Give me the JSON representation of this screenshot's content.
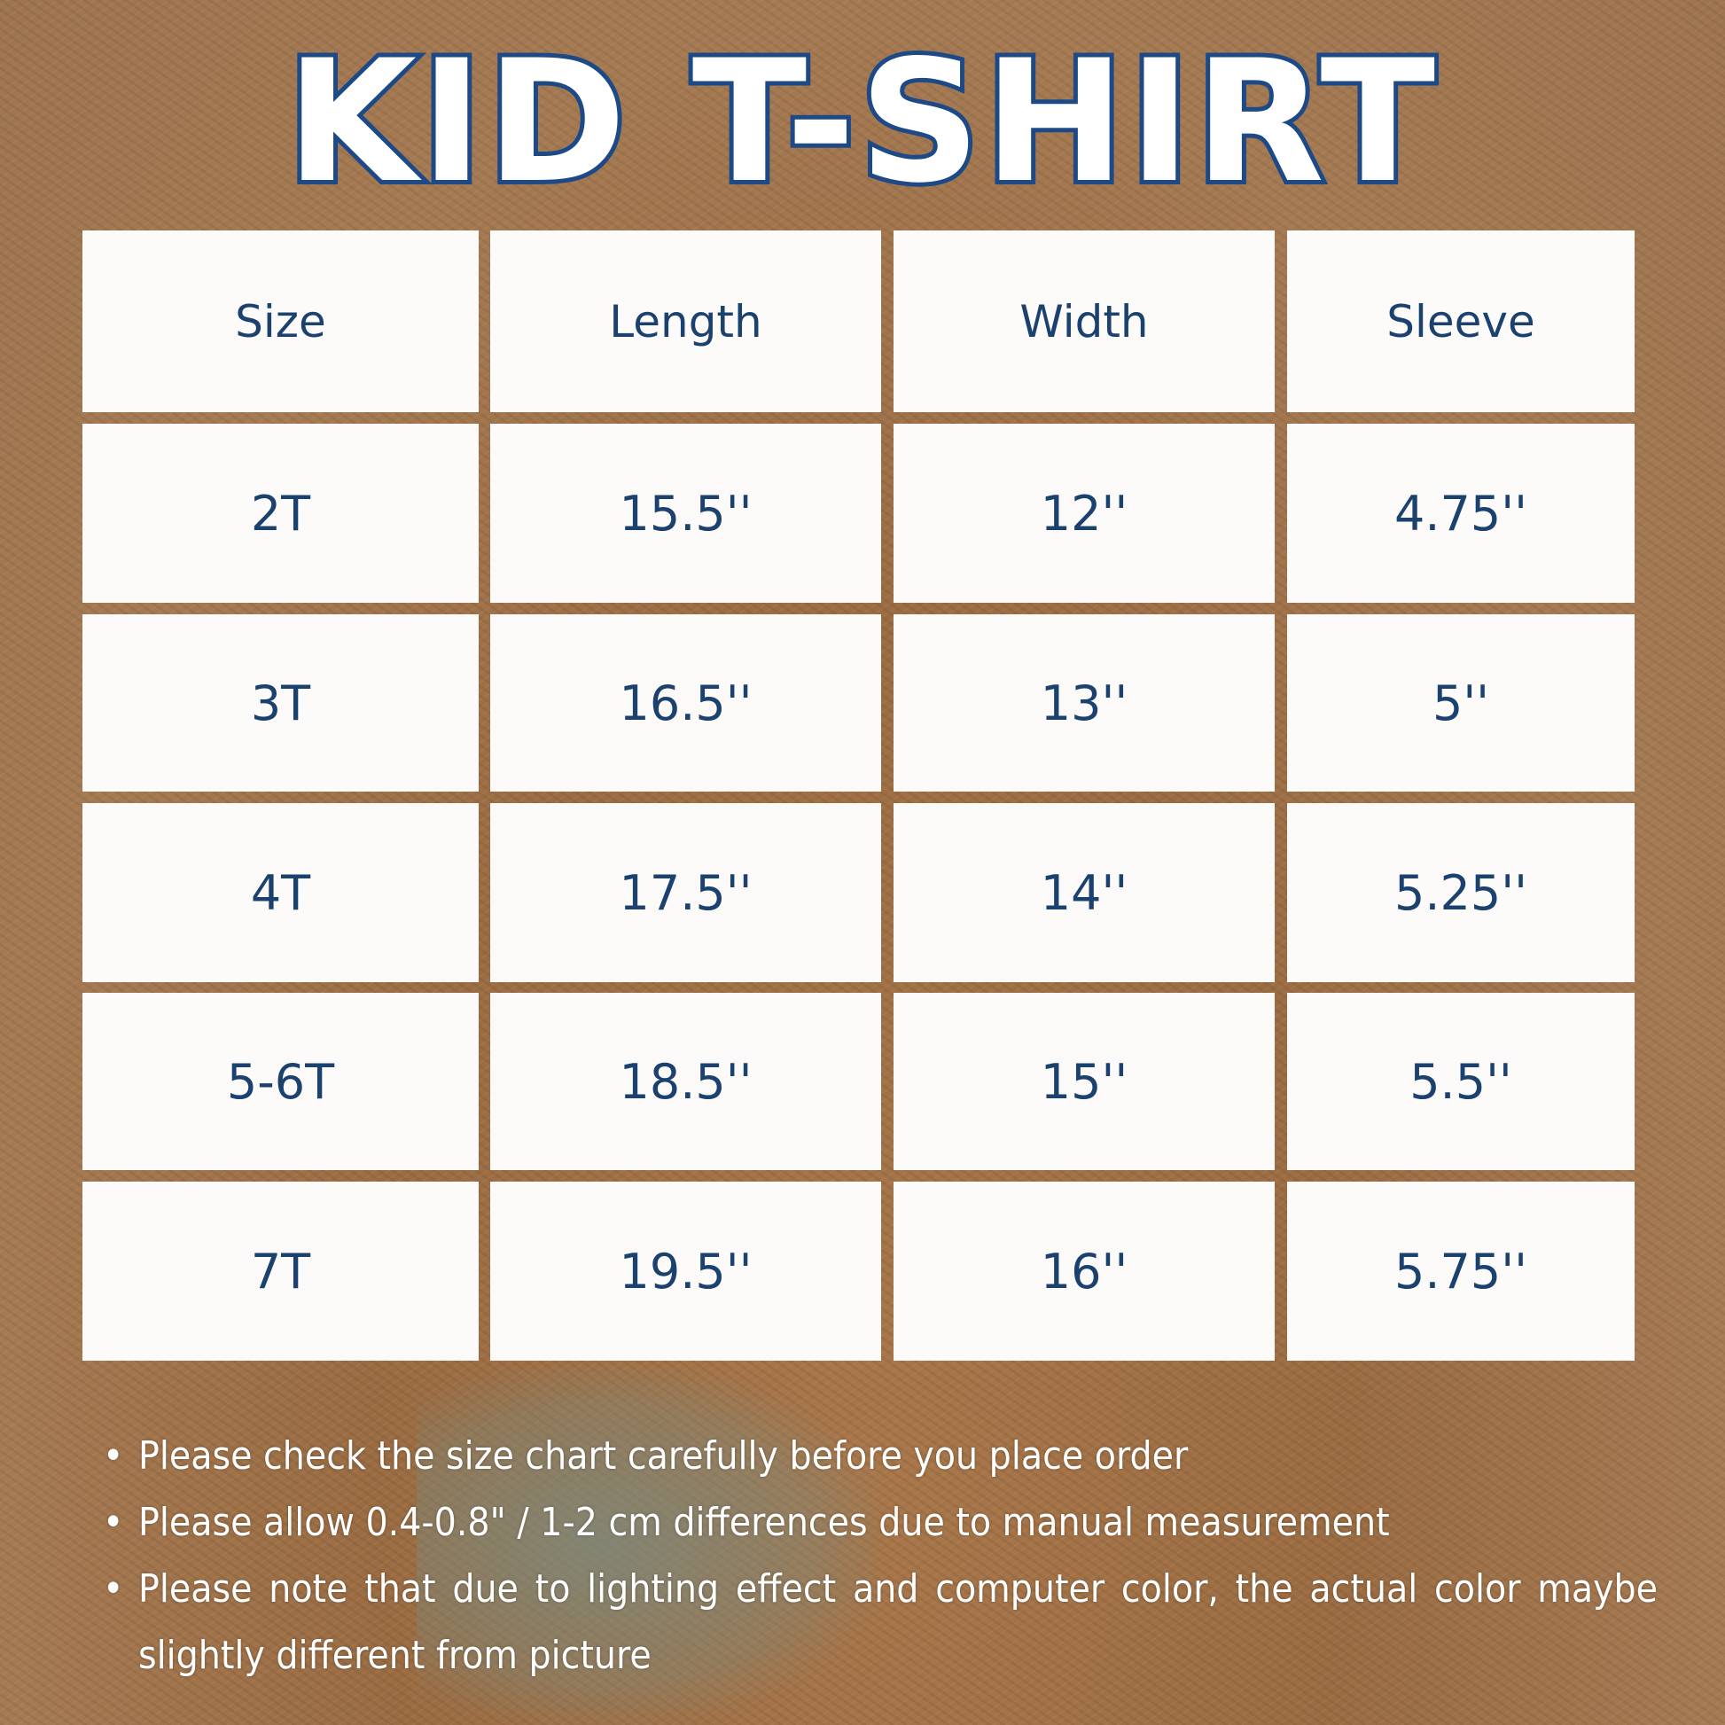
{
  "title": "KID T-SHIRT",
  "table": {
    "headers": [
      "Size",
      "Length",
      "Width",
      "Sleeve"
    ],
    "rows": [
      [
        "2T",
        "15.5''",
        "12''",
        "4.75''"
      ],
      [
        "3T",
        "16.5''",
        "13''",
        "5''"
      ],
      [
        "4T",
        "17.5''",
        "14''",
        "5.25''"
      ],
      [
        "5-6T",
        "18.5''",
        "15''",
        "5.5''"
      ],
      [
        "7T",
        "19.5''",
        "16''",
        "5.75''"
      ]
    ]
  },
  "notes": [
    "Please check the size chart carefully before you place order",
    "Please allow 0.4-0.8\" / 1-2 cm differences due to manual measurement",
    "Please note that due to lighting effect and computer color, the actual color maybe slightly different from picture"
  ],
  "colors": {
    "text": "#1b416f",
    "title_outline": "#1d4a86",
    "background": "#a5774b"
  }
}
